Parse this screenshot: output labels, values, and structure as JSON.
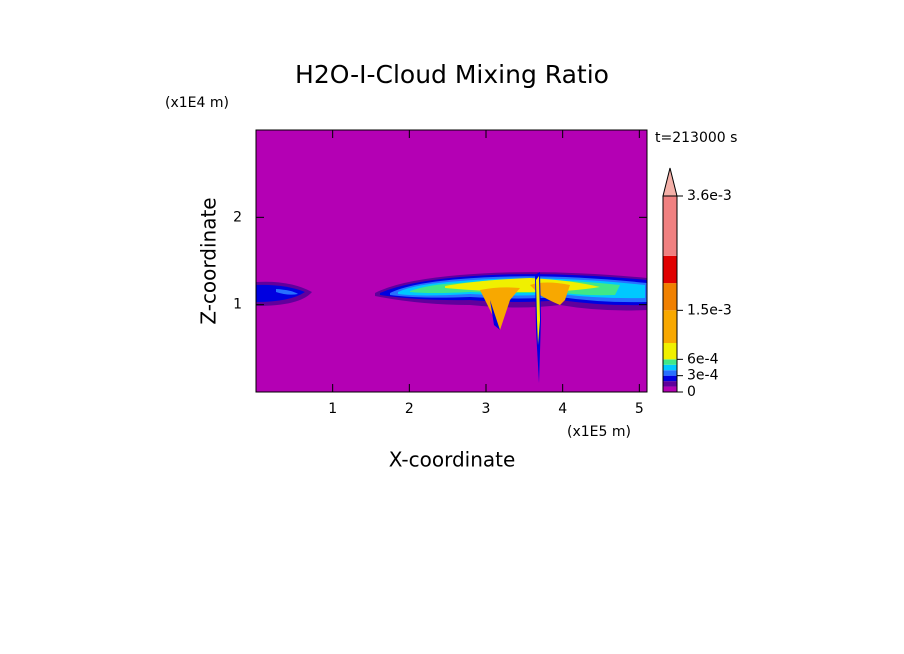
{
  "chart_data": {
    "type": "contour",
    "title": "H2O-I-Cloud Mixing Ratio",
    "x_label": "X-coordinate",
    "y_label": "Z-coordinate",
    "x_unit": "(x1E5 m)",
    "y_unit": "(x1E4 m)",
    "time_label": "t=213000 s",
    "xlim": [
      0,
      5.1
    ],
    "xticks": [
      1,
      2,
      3,
      4,
      5
    ],
    "ylim": [
      0,
      3
    ],
    "yticks": [
      1,
      2
    ],
    "levels": [
      0,
      0.0001,
      0.0002,
      0.0003,
      0.0004,
      0.0005,
      0.0006,
      0.0009,
      0.0015,
      0.002,
      0.0025,
      0.0036
    ],
    "colors": [
      "#b400b4",
      "#60009c",
      "#0000e0",
      "#2870ff",
      "#00c8ff",
      "#40e888",
      "#f0f000",
      "#f8a800",
      "#f08000",
      "#e00000",
      "#f08080"
    ],
    "colorbar_ticks": [
      0,
      {
        "value": 0.0003,
        "label": "3e-4"
      },
      {
        "value": 0.0006,
        "label": "6e-4"
      },
      {
        "value": 0.0015,
        "label": "1.5e-3"
      },
      {
        "value": 0.0036,
        "label": "3.6e-3"
      }
    ]
  }
}
